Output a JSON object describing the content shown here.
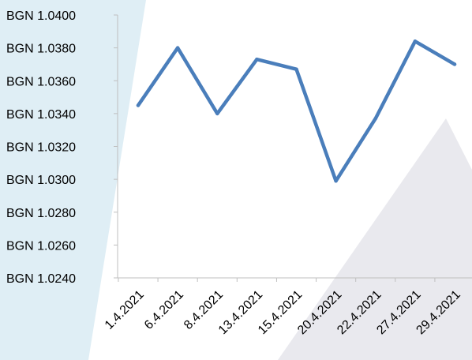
{
  "chart_data": {
    "type": "line",
    "title": "",
    "xlabel": "",
    "ylabel": "",
    "categories": [
      "1.4.2021",
      "6.4.2021",
      "8.4.2021",
      "13.4.2021",
      "15.4.2021",
      "20.4.2021",
      "22.4.2021",
      "27.4.2021",
      "29.4.2021"
    ],
    "series": [
      {
        "values": [
          1.0345,
          1.038,
          1.034,
          1.0373,
          1.0367,
          1.0299,
          1.0337,
          1.0384,
          1.037
        ]
      }
    ],
    "y_ticks": [
      "BGN 1.0240",
      "BGN 1.0260",
      "BGN 1.0280",
      "BGN 1.0300",
      "BGN 1.0320",
      "BGN 1.0340",
      "BGN 1.0360",
      "BGN 1.0380",
      "BGN 1.0400"
    ],
    "ylim": [
      1.024,
      1.04
    ],
    "y_step": 0.002,
    "grid": false,
    "legend": "none",
    "colors": {
      "line": "#4a7ebb",
      "axis": "#bfbfbf",
      "watermark_left": "#dfeef5",
      "watermark_right": "#e9e9ee"
    }
  }
}
